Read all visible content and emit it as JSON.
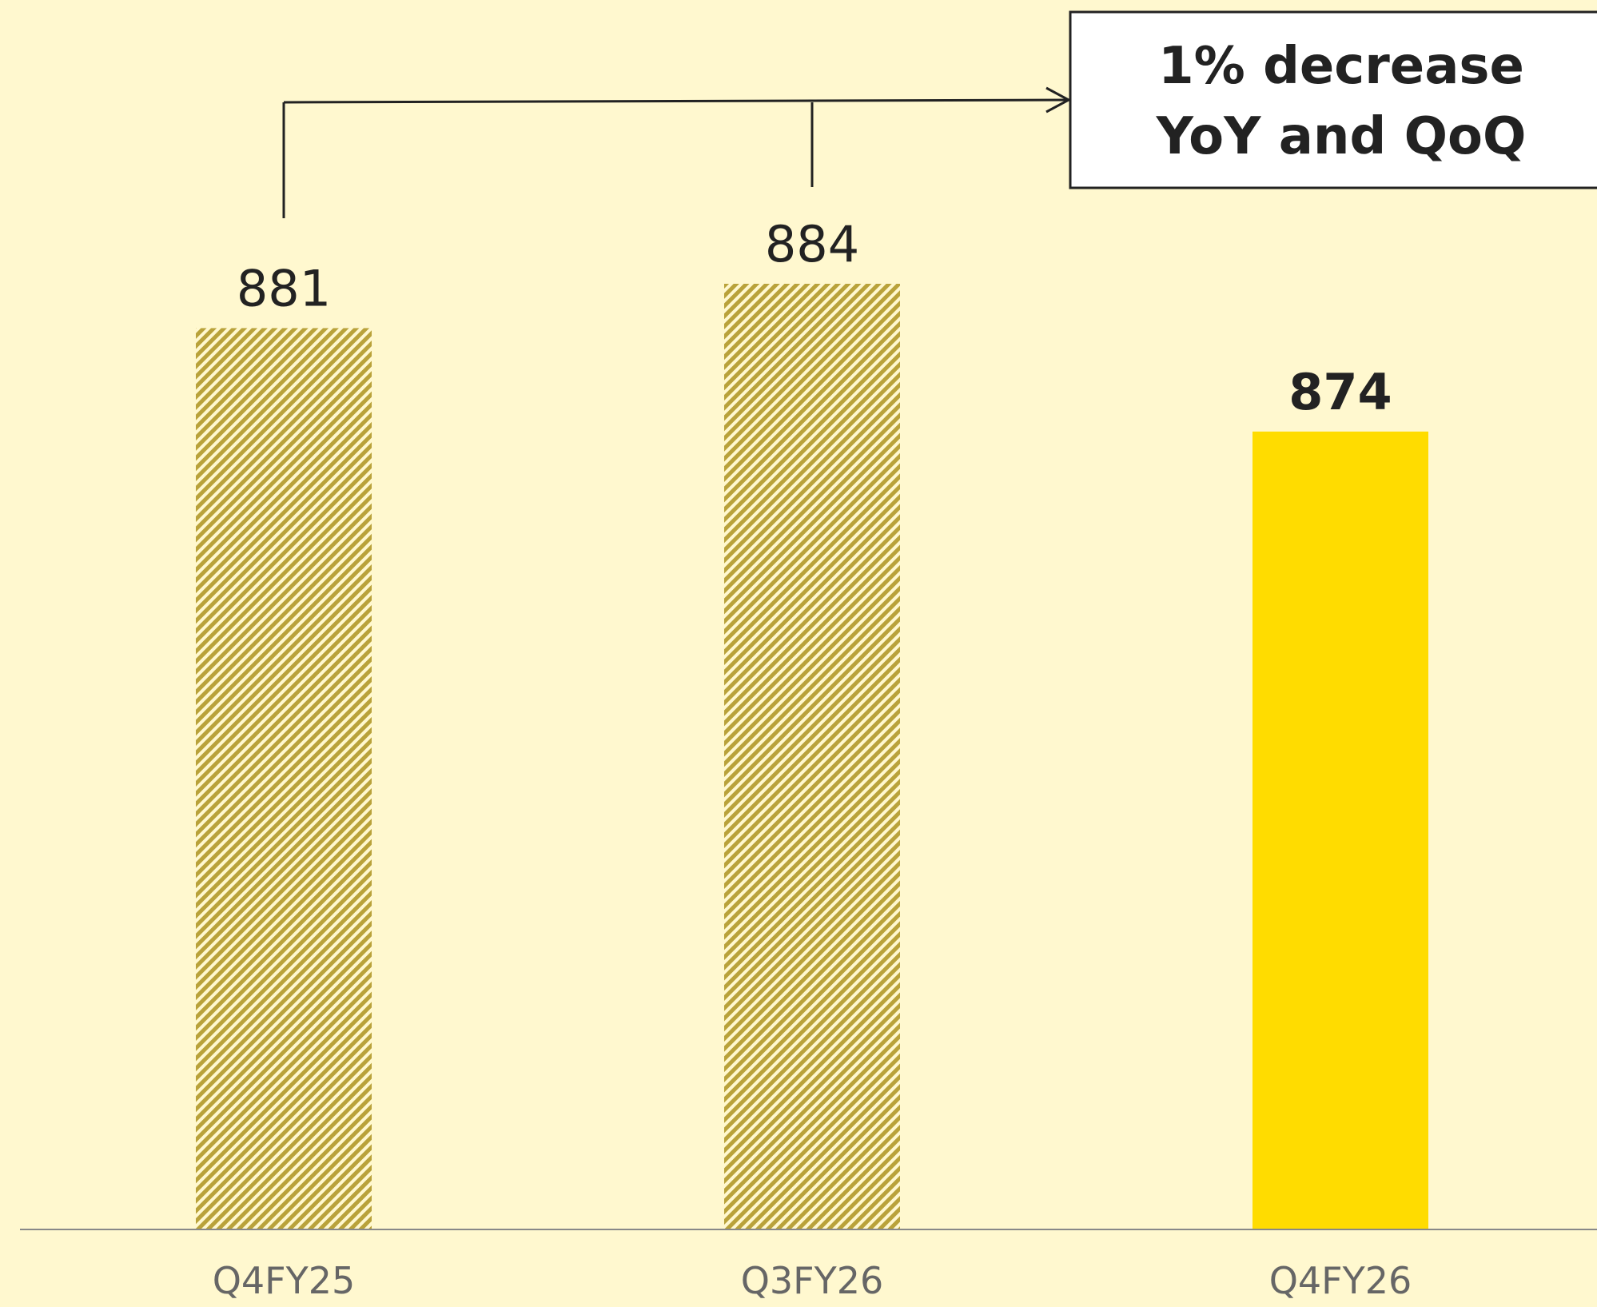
{
  "chart_data": {
    "type": "bar",
    "categories": [
      "Q4FY25",
      "Q3FY26",
      "Q4FY26"
    ],
    "values": [
      881,
      884,
      874
    ],
    "value_labels": [
      "881",
      "884",
      "874"
    ],
    "highlight_index": 2,
    "ylim": [
      0,
      884
    ],
    "grid": false,
    "legend": "none",
    "annotation": {
      "lines": [
        "1% decrease",
        "YoY and QoQ"
      ]
    }
  },
  "colors": {
    "background": "#FFF8CF",
    "hatch_bar": "#B9A23A",
    "highlight_bar": "#FFDC00",
    "axis": "#888888",
    "text": "#222222",
    "tick_text": "#666666"
  }
}
